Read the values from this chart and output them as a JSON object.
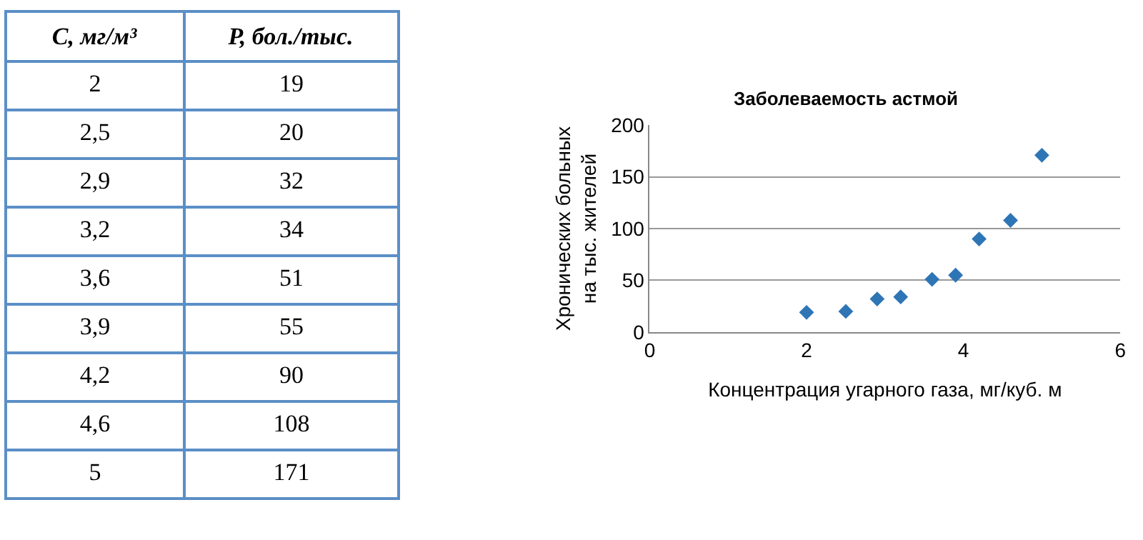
{
  "chart_data": {
    "type": "scatter",
    "title": "Заболеваемость астмой",
    "xlabel": "Концентрация угарного газа, мг/куб. м",
    "ylabel": "Хронических больных\nна тыс. жителей",
    "annotations": [
      "C, мг/м³",
      "P, бол./тыс.",
      "2",
      "2,5",
      "2,9",
      "3,2",
      "3,6",
      "3,9",
      "4,2",
      "4,6",
      "5",
      "19",
      "20",
      "32",
      "34",
      "51",
      "55",
      "90",
      "108",
      "171"
    ],
    "x": [
      2,
      2.5,
      2.9,
      3.2,
      3.6,
      3.9,
      4.2,
      4.6,
      5
    ],
    "series": [
      {
        "color": "#2e75b6",
        "values": [
          19,
          20,
          32,
          34,
          51,
          55,
          90,
          108,
          171
        ]
      }
    ],
    "xlim": [
      0,
      6
    ],
    "xticks": [
      0,
      2,
      4,
      6
    ],
    "ylim": [
      0,
      200
    ],
    "yticks": [
      0,
      50,
      100,
      150,
      200
    ],
    "grid": "y",
    "marker": "diamond"
  }
}
